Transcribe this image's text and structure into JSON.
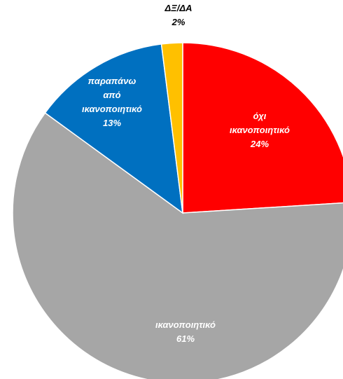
{
  "chart_data": {
    "type": "pie",
    "title": "",
    "start_angle_deg": 0,
    "direction": "clockwise",
    "slices": [
      {
        "label": [
          "όχι",
          "ικανοποιητικό"
        ],
        "value": 24,
        "value_label": "24%",
        "color": "#ff0000",
        "text_color": "#ffffff"
      },
      {
        "label": [
          "ικανοποιητικό"
        ],
        "value": 61,
        "value_label": "61%",
        "color": "#a6a6a6",
        "text_color": "#ffffff"
      },
      {
        "label": [
          "παραπάνω",
          "από",
          "ικανοποιητικό"
        ],
        "value": 13,
        "value_label": "13%",
        "color": "#0070c0",
        "text_color": "#ffffff"
      },
      {
        "label": [
          "ΔΞ/ΔΑ"
        ],
        "value": 2,
        "value_label": "2%",
        "color": "#ffc000",
        "text_color": "#000000"
      }
    ]
  }
}
